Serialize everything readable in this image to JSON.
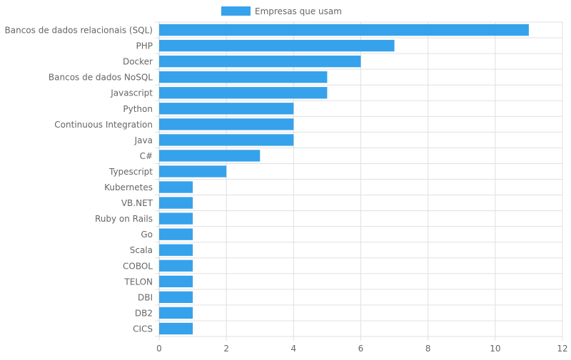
{
  "chart_data": {
    "type": "bar",
    "orientation": "horizontal",
    "categories": [
      "Bancos de dados relacionais (SQL)",
      "PHP",
      "Docker",
      "Bancos de dados NoSQL",
      "Javascript",
      "Python",
      "Continuous Integration",
      "Java",
      "C#",
      "Typescript",
      "Kubernetes",
      "VB.NET",
      "Ruby on Rails",
      "Go",
      "Scala",
      "COBOL",
      "TELON",
      "DBI",
      "DB2",
      "CICS"
    ],
    "series": [
      {
        "name": "Empresas que usam",
        "color": "#36a2eb",
        "values": [
          11,
          7,
          6,
          5,
          5,
          4,
          4,
          4,
          3,
          2,
          1,
          1,
          1,
          1,
          1,
          1,
          1,
          1,
          1,
          1
        ]
      }
    ],
    "xlim": [
      0,
      12
    ],
    "x_ticks": [
      0,
      2,
      4,
      6,
      8,
      10,
      12
    ],
    "grid": true,
    "legend_position": "top"
  }
}
